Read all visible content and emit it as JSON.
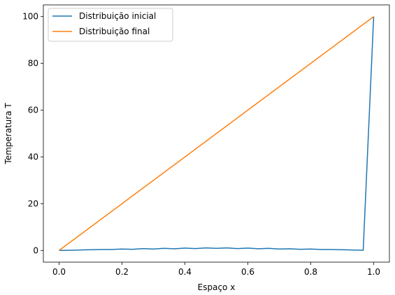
{
  "chart_data": {
    "type": "line",
    "title": "",
    "xlabel": "Espaço x",
    "ylabel": "Temperatura T",
    "xlim": [
      -0.05,
      1.05
    ],
    "ylim": [
      -5,
      105
    ],
    "xticks": [
      0.0,
      0.2,
      0.4,
      0.6,
      0.8,
      1.0
    ],
    "xtick_labels": [
      "0.0",
      "0.2",
      "0.4",
      "0.6",
      "0.8",
      "1.0"
    ],
    "yticks": [
      0,
      20,
      40,
      60,
      80,
      100
    ],
    "ytick_labels": [
      "0",
      "20",
      "40",
      "60",
      "80",
      "100"
    ],
    "grid": false,
    "legend_position": "top-left",
    "series": [
      {
        "name": "Distribuição inicial",
        "color": "#1f77b4",
        "x": [
          0.0,
          0.0333,
          0.0667,
          0.1,
          0.1333,
          0.1667,
          0.2,
          0.2333,
          0.2667,
          0.3,
          0.3333,
          0.3667,
          0.4,
          0.4333,
          0.4667,
          0.5,
          0.5333,
          0.5667,
          0.6,
          0.6333,
          0.6667,
          0.7,
          0.7333,
          0.7667,
          0.8,
          0.8333,
          0.8667,
          0.9,
          0.9333,
          0.9667,
          1.0
        ],
        "y": [
          0,
          0.1,
          0.2,
          0.3,
          0.4,
          0.4,
          0.6,
          0.5,
          0.8,
          0.6,
          0.9,
          0.7,
          1.0,
          0.8,
          1.1,
          0.9,
          1.1,
          0.8,
          1.0,
          0.7,
          0.9,
          0.6,
          0.7,
          0.5,
          0.6,
          0.4,
          0.4,
          0.3,
          0.2,
          0.1,
          100
        ]
      },
      {
        "name": "Distribuição final",
        "color": "#ff7f0e",
        "x": [
          0.0,
          1.0
        ],
        "y": [
          0,
          100
        ]
      }
    ]
  }
}
